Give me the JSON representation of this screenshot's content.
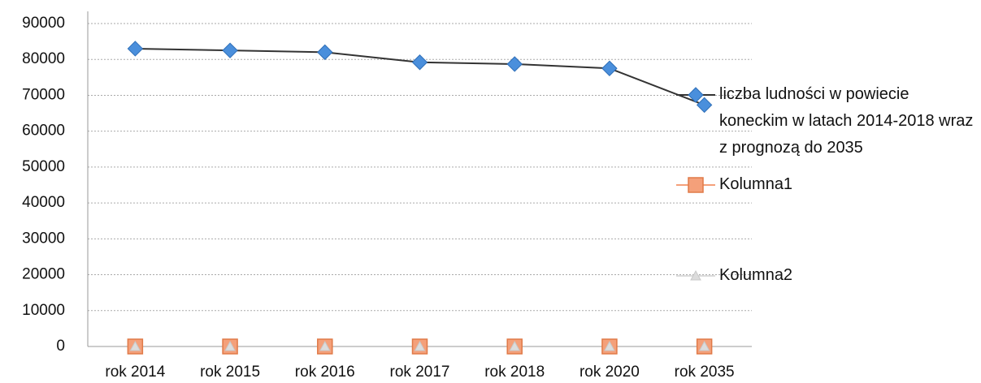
{
  "chart_data": {
    "type": "line",
    "categories": [
      "rok 2014",
      "rok 2015",
      "rok 2016",
      "rok 2017",
      "rok 2018",
      "rok 2020",
      "rok 2035"
    ],
    "series": [
      {
        "name": "liczba ludności w powiecie koneckim w latach 2014-2018 wraz z prognozą do 2035",
        "color": "#4a8fdc",
        "marker": "diamond",
        "values": [
          83000,
          82500,
          82000,
          79200,
          78700,
          77500,
          67300
        ]
      },
      {
        "name": "Kolumna1",
        "color": "#f4a07a",
        "marker": "square",
        "values": [
          0,
          0,
          0,
          0,
          0,
          0,
          0
        ]
      },
      {
        "name": "Kolumna2",
        "color": "#dcdcdc",
        "marker": "triangle",
        "values": [
          0,
          0,
          0,
          0,
          0,
          0,
          0
        ]
      }
    ],
    "ylim": [
      0,
      90000
    ],
    "yticks": [
      0,
      10000,
      20000,
      30000,
      40000,
      50000,
      60000,
      70000,
      80000,
      90000
    ],
    "grid": true,
    "legend": "right"
  }
}
